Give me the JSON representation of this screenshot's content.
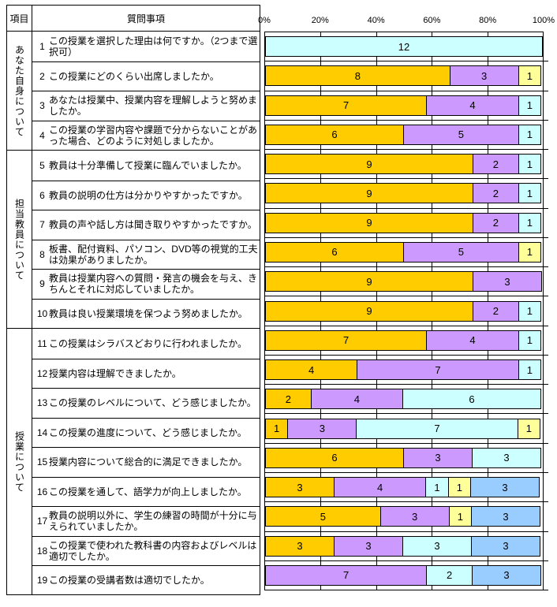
{
  "table": {
    "item_header": "項目",
    "question_header": "質問事項",
    "groups": [
      {
        "label": "あなた自身について",
        "question_numbers": [
          1,
          2,
          3,
          4
        ]
      },
      {
        "label": "担当教員について",
        "question_numbers": [
          5,
          6,
          7,
          8,
          9,
          10
        ]
      },
      {
        "label": "授業について",
        "question_numbers": [
          11,
          12,
          13,
          14,
          15,
          16,
          17,
          18,
          19
        ]
      }
    ],
    "questions": [
      {
        "no": "1",
        "text": "この授業を選択した理由は何ですか。（2つまで選択可）"
      },
      {
        "no": "2",
        "text": "この授業にどのくらい出席しましたか。"
      },
      {
        "no": "3",
        "text": "あなたは授業中、授業内容を理解しようと努めましたか。"
      },
      {
        "no": "4",
        "text": "この授業の学習内容や課題で分からないことがあった場合、どのように対処しましたか。"
      },
      {
        "no": "5",
        "text": "教員は十分準備して授業に臨んでいましたか。"
      },
      {
        "no": "6",
        "text": "教員の説明の仕方は分かりやすかったですか。"
      },
      {
        "no": "7",
        "text": "教員の声や話し方は聞き取りやすかったですか。"
      },
      {
        "no": "8",
        "text": "板書、配付資料、パソコン、DVD等の視覚的工夫は効果がありましたか。"
      },
      {
        "no": "9",
        "text": "教員は授業内容への質問・発言の機会を与え、きちんとそれに対応していましたか。"
      },
      {
        "no": "10",
        "text": "教員は良い授業環境を保つよう努めましたか。"
      },
      {
        "no": "11",
        "text": "この授業はシラバスどおりに行われましたか。"
      },
      {
        "no": "12",
        "text": "授業内容は理解できましたか。"
      },
      {
        "no": "13",
        "text": "この授業のレベルについて、どう感じましたか。"
      },
      {
        "no": "14",
        "text": "この授業の進度について、どう感じましたか。"
      },
      {
        "no": "15",
        "text": "授業内容について総合的に満足できましたか。"
      },
      {
        "no": "16",
        "text": "この授業を通して、語学力が向上しましたか。"
      },
      {
        "no": "17",
        "text": "教員の説明以外に、学生の練習の時間が十分に与えられていましたか。"
      },
      {
        "no": "18",
        "text": "この授業で使われた教科書の内容およびレベルは適切でしたか。"
      },
      {
        "no": "19",
        "text": "この授業の受講者数は適切でしたか。"
      }
    ]
  },
  "chart_data": {
    "type": "bar",
    "stacked": true,
    "orientation": "horizontal",
    "respondents_total": 12,
    "x_axis_ticks": [
      "0%",
      "20%",
      "40%",
      "60%",
      "80%",
      "100%"
    ],
    "x_range_percent": [
      0,
      100
    ],
    "grid": true,
    "legend_position": "none",
    "colors": {
      "orange": "#FFCC00",
      "purple": "#CC99FF",
      "cyan": "#CCFFFF",
      "yellow": "#FFFF99",
      "blue": "#99CCFF"
    },
    "rows": [
      {
        "question": 1,
        "segments": [
          {
            "color": "cyan",
            "value": 12
          }
        ]
      },
      {
        "question": 2,
        "segments": [
          {
            "color": "orange",
            "value": 8
          },
          {
            "color": "purple",
            "value": 3
          },
          {
            "color": "yellow",
            "value": 1
          }
        ]
      },
      {
        "question": 3,
        "segments": [
          {
            "color": "orange",
            "value": 7
          },
          {
            "color": "purple",
            "value": 4
          },
          {
            "color": "cyan",
            "value": 1
          }
        ]
      },
      {
        "question": 4,
        "segments": [
          {
            "color": "orange",
            "value": 6
          },
          {
            "color": "purple",
            "value": 5
          },
          {
            "color": "cyan",
            "value": 1
          }
        ]
      },
      {
        "question": 5,
        "segments": [
          {
            "color": "orange",
            "value": 9
          },
          {
            "color": "purple",
            "value": 2
          },
          {
            "color": "cyan",
            "value": 1
          }
        ]
      },
      {
        "question": 6,
        "segments": [
          {
            "color": "orange",
            "value": 9
          },
          {
            "color": "purple",
            "value": 2
          },
          {
            "color": "cyan",
            "value": 1
          }
        ]
      },
      {
        "question": 7,
        "segments": [
          {
            "color": "orange",
            "value": 9
          },
          {
            "color": "purple",
            "value": 2
          },
          {
            "color": "cyan",
            "value": 1
          }
        ]
      },
      {
        "question": 8,
        "segments": [
          {
            "color": "orange",
            "value": 6
          },
          {
            "color": "purple",
            "value": 5
          },
          {
            "color": "yellow",
            "value": 1
          }
        ]
      },
      {
        "question": 9,
        "segments": [
          {
            "color": "orange",
            "value": 9
          },
          {
            "color": "purple",
            "value": 3
          }
        ]
      },
      {
        "question": 10,
        "segments": [
          {
            "color": "orange",
            "value": 9
          },
          {
            "color": "purple",
            "value": 2
          },
          {
            "color": "cyan",
            "value": 1
          }
        ]
      },
      {
        "question": 11,
        "segments": [
          {
            "color": "orange",
            "value": 7
          },
          {
            "color": "purple",
            "value": 4
          },
          {
            "color": "cyan",
            "value": 1
          }
        ]
      },
      {
        "question": 12,
        "segments": [
          {
            "color": "orange",
            "value": 4
          },
          {
            "color": "purple",
            "value": 7
          },
          {
            "color": "cyan",
            "value": 1
          }
        ]
      },
      {
        "question": 13,
        "segments": [
          {
            "color": "orange",
            "value": 2
          },
          {
            "color": "purple",
            "value": 4
          },
          {
            "color": "cyan",
            "value": 6
          }
        ]
      },
      {
        "question": 14,
        "segments": [
          {
            "color": "orange",
            "value": 1
          },
          {
            "color": "purple",
            "value": 3
          },
          {
            "color": "cyan",
            "value": 7
          },
          {
            "color": "yellow",
            "value": 1
          }
        ]
      },
      {
        "question": 15,
        "segments": [
          {
            "color": "orange",
            "value": 6
          },
          {
            "color": "purple",
            "value": 3
          },
          {
            "color": "cyan",
            "value": 3
          }
        ]
      },
      {
        "question": 16,
        "segments": [
          {
            "color": "orange",
            "value": 3
          },
          {
            "color": "purple",
            "value": 4
          },
          {
            "color": "cyan",
            "value": 1
          },
          {
            "color": "yellow",
            "value": 1
          },
          {
            "color": "blue",
            "value": 3
          }
        ]
      },
      {
        "question": 17,
        "segments": [
          {
            "color": "orange",
            "value": 5
          },
          {
            "color": "purple",
            "value": 3
          },
          {
            "color": "yellow",
            "value": 1
          },
          {
            "color": "blue",
            "value": 3
          }
        ]
      },
      {
        "question": 18,
        "segments": [
          {
            "color": "orange",
            "value": 3
          },
          {
            "color": "purple",
            "value": 3
          },
          {
            "color": "cyan",
            "value": 3
          },
          {
            "color": "blue",
            "value": 3
          }
        ]
      },
      {
        "question": 19,
        "segments": [
          {
            "color": "purple",
            "value": 7
          },
          {
            "color": "cyan",
            "value": 2
          },
          {
            "color": "blue",
            "value": 3
          }
        ]
      }
    ]
  }
}
